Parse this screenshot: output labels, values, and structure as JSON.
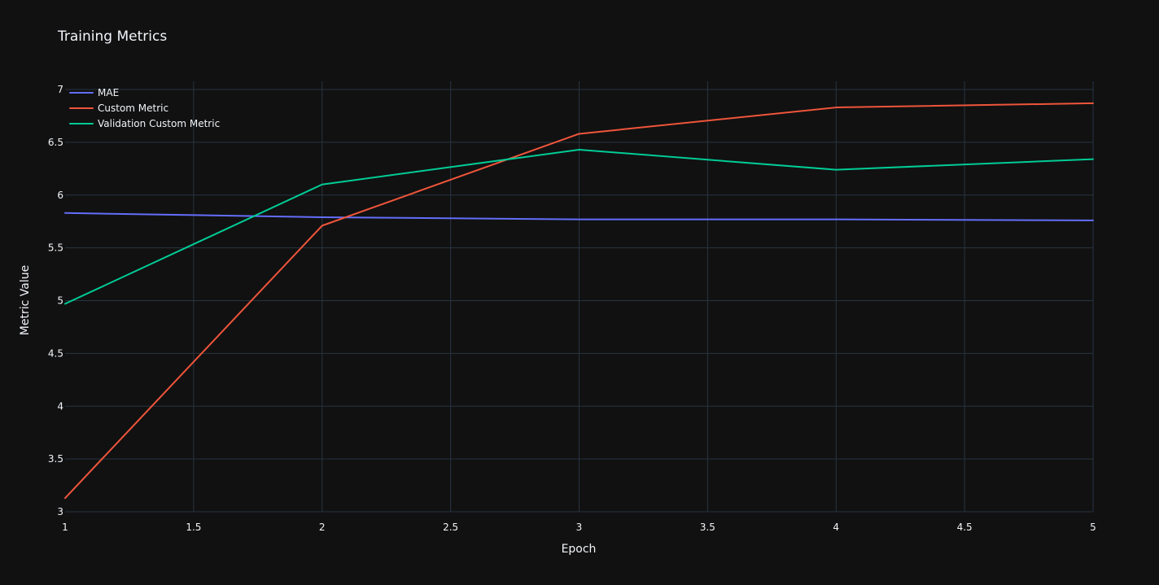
{
  "chart_data": {
    "type": "line",
    "title": "Training Metrics",
    "xlabel": "Epoch",
    "ylabel": "Metric Value",
    "x": [
      1,
      2,
      3,
      4,
      5
    ],
    "xlim": [
      1,
      5
    ],
    "ylim": [
      3,
      7
    ],
    "xticks": [
      "1",
      "1.5",
      "2",
      "2.5",
      "3",
      "3.5",
      "4",
      "4.5",
      "5"
    ],
    "yticks": [
      "3",
      "3.5",
      "4",
      "4.5",
      "5",
      "5.5",
      "6",
      "6.5",
      "7"
    ],
    "grid": true,
    "legend_position": "top-left",
    "series": [
      {
        "name": "MAE",
        "color": "#636efa",
        "values": [
          5.83,
          5.79,
          5.77,
          5.77,
          5.76
        ]
      },
      {
        "name": "Custom Metric",
        "color": "#ef553b",
        "values": [
          3.13,
          5.71,
          6.58,
          6.83,
          6.87
        ]
      },
      {
        "name": "Validation Custom Metric",
        "color": "#00cc96",
        "values": [
          4.97,
          6.1,
          6.43,
          6.24,
          6.34
        ]
      }
    ]
  }
}
